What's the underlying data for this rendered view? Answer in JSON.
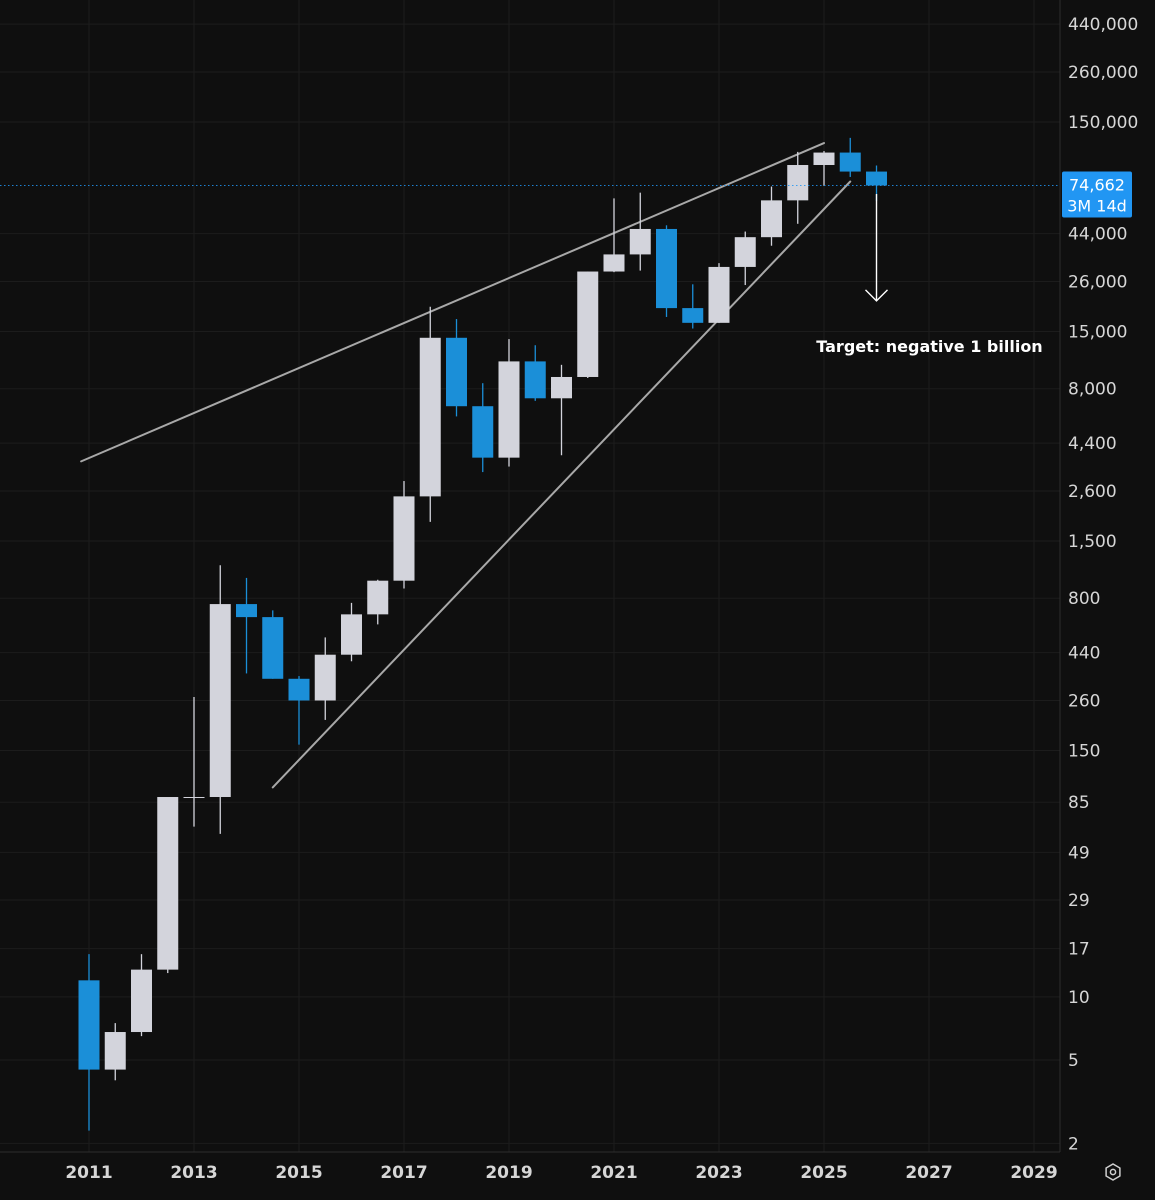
{
  "chart_data": {
    "type": "candlestick",
    "period": "quarterly",
    "scale": "log",
    "ylim": [
      1.8,
      600000
    ],
    "xlim": [
      2010.4,
      2029.4
    ],
    "grid": true,
    "y_ticks": [
      {
        "value": 440000,
        "label": "440,000"
      },
      {
        "value": 260000,
        "label": "260,000"
      },
      {
        "value": 150000,
        "label": "150,000"
      },
      {
        "value": 44000,
        "label": "44,000"
      },
      {
        "value": 26000,
        "label": "26,000"
      },
      {
        "value": 15000,
        "label": "15,000"
      },
      {
        "value": 8000,
        "label": "8,000"
      },
      {
        "value": 4400,
        "label": "4,400"
      },
      {
        "value": 2600,
        "label": "2,600"
      },
      {
        "value": 1500,
        "label": "1,500"
      },
      {
        "value": 800,
        "label": "800"
      },
      {
        "value": 440,
        "label": "440"
      },
      {
        "value": 260,
        "label": "260"
      },
      {
        "value": 150,
        "label": "150"
      },
      {
        "value": 85,
        "label": "85"
      },
      {
        "value": 49,
        "label": "49"
      },
      {
        "value": 29,
        "label": "29"
      },
      {
        "value": 17,
        "label": "17"
      },
      {
        "value": 10,
        "label": "10"
      },
      {
        "value": 5,
        "label": "5"
      },
      {
        "value": 2,
        "label": "2"
      }
    ],
    "x_ticks": [
      {
        "value": 2011,
        "label": "2011"
      },
      {
        "value": 2013,
        "label": "2013"
      },
      {
        "value": 2015,
        "label": "2015"
      },
      {
        "value": 2017,
        "label": "2017"
      },
      {
        "value": 2019,
        "label": "2019"
      },
      {
        "value": 2021,
        "label": "2021"
      },
      {
        "value": 2023,
        "label": "2023"
      },
      {
        "value": 2025,
        "label": "2025"
      },
      {
        "value": 2027,
        "label": "2027"
      },
      {
        "value": 2029,
        "label": "2029"
      }
    ],
    "candles": [
      {
        "t": 2011.0,
        "o": 12,
        "h": 16,
        "l": 2.3,
        "c": 4.5
      },
      {
        "t": 2011.5,
        "o": 4.5,
        "h": 7.5,
        "l": 4,
        "c": 6.8
      },
      {
        "t": 2012.0,
        "o": 6.8,
        "h": 16,
        "l": 6.5,
        "c": 13.5
      },
      {
        "t": 2012.5,
        "o": 13.5,
        "h": 14.5,
        "l": 13,
        "c": 90
      },
      {
        "t": 2013.0,
        "o": 90,
        "h": 270,
        "l": 65,
        "c": 90
      },
      {
        "t": 2013.5,
        "o": 90,
        "h": 1150,
        "l": 60,
        "c": 750
      },
      {
        "t": 2014.0,
        "o": 750,
        "h": 1000,
        "l": 350,
        "c": 650
      },
      {
        "t": 2014.5,
        "o": 650,
        "h": 700,
        "l": 330,
        "c": 330
      },
      {
        "t": 2015.0,
        "o": 330,
        "h": 340,
        "l": 160,
        "c": 260
      },
      {
        "t": 2015.5,
        "o": 260,
        "h": 520,
        "l": 210,
        "c": 430
      },
      {
        "t": 2016.0,
        "o": 430,
        "h": 760,
        "l": 400,
        "c": 670
      },
      {
        "t": 2016.5,
        "o": 670,
        "h": 980,
        "l": 600,
        "c": 970
      },
      {
        "t": 2017.0,
        "o": 970,
        "h": 2900,
        "l": 890,
        "c": 2450
      },
      {
        "t": 2017.5,
        "o": 2450,
        "h": 19700,
        "l": 1850,
        "c": 14000
      },
      {
        "t": 2018.0,
        "o": 14000,
        "h": 17200,
        "l": 5900,
        "c": 6600
      },
      {
        "t": 2018.5,
        "o": 6600,
        "h": 8500,
        "l": 3200,
        "c": 3750
      },
      {
        "t": 2019.0,
        "o": 3750,
        "h": 13800,
        "l": 3400,
        "c": 10800
      },
      {
        "t": 2019.5,
        "o": 10800,
        "h": 12900,
        "l": 7000,
        "c": 7200
      },
      {
        "t": 2020.0,
        "o": 7200,
        "h": 10400,
        "l": 3850,
        "c": 9100
      },
      {
        "t": 2020.5,
        "o": 9100,
        "h": 29000,
        "l": 9000,
        "c": 29000
      },
      {
        "t": 2021.0,
        "o": 29000,
        "h": 64800,
        "l": 28800,
        "c": 35000
      },
      {
        "t": 2021.5,
        "o": 35000,
        "h": 69000,
        "l": 29300,
        "c": 46300
      },
      {
        "t": 2022.0,
        "o": 46300,
        "h": 48200,
        "l": 17600,
        "c": 19400
      },
      {
        "t": 2022.5,
        "o": 19400,
        "h": 25200,
        "l": 15500,
        "c": 16500
      },
      {
        "t": 2023.0,
        "o": 16500,
        "h": 31800,
        "l": 16500,
        "c": 30500
      },
      {
        "t": 2023.5,
        "o": 30500,
        "h": 45000,
        "l": 25000,
        "c": 42300
      },
      {
        "t": 2024.0,
        "o": 42300,
        "h": 73800,
        "l": 38500,
        "c": 63400
      },
      {
        "t": 2024.5,
        "o": 63400,
        "h": 108000,
        "l": 49000,
        "c": 93500
      },
      {
        "t": 2025.0,
        "o": 93500,
        "h": 109000,
        "l": 74400,
        "c": 107200
      },
      {
        "t": 2025.5,
        "o": 107200,
        "h": 126000,
        "l": 82000,
        "c": 87000
      },
      {
        "t": 2026.0,
        "o": 87000,
        "h": 93000,
        "l": 63000,
        "c": 74662
      }
    ],
    "colors": {
      "up": "#d3d4dc",
      "down": "#1b8fd8",
      "trendline": "#a8a8a8",
      "background": "#0f0f0f",
      "grid": "#1c1c1c"
    },
    "trendlines": [
      {
        "name": "upper",
        "from": {
          "t": 2010.85,
          "v": 3600
        },
        "to": {
          "t": 2025.0,
          "v": 119000
        }
      },
      {
        "name": "lower",
        "from": {
          "t": 2014.5,
          "v": 100
        },
        "to": {
          "t": 2025.5,
          "v": 78000
        }
      }
    ],
    "projection_arrow": {
      "t": 2026.0,
      "from_v": 68000,
      "to_v": 21000
    },
    "annotation": {
      "text": "Target: negative 1 billion",
      "t": 2026.0,
      "v": 12800
    },
    "price_tag": {
      "price": 74662,
      "price_label": "74,662",
      "countdown": "3M 14d",
      "color": "#2196f3"
    }
  },
  "axis_settings_icon": "gear-icon"
}
